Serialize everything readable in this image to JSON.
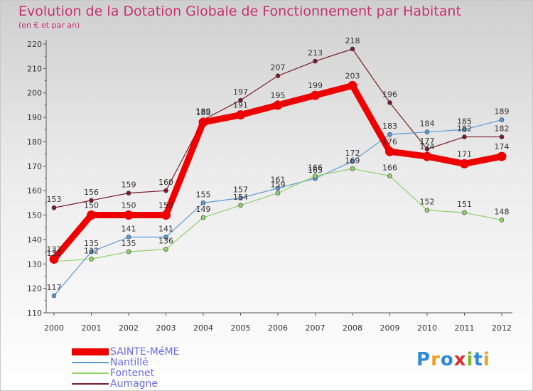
{
  "title": "Evolution de la Dotation Globale de Fonctionnement par Habitant",
  "subtitle": "(en € et par an)",
  "logo": {
    "text": "Proxiti",
    "colors": [
      "#2f8ad8",
      "#f0a020",
      "#2f8ad8",
      "#d83030",
      "#7ab828",
      "#2f8ad8",
      "#f0a020"
    ]
  },
  "chart_data": {
    "type": "line",
    "title": "Evolution de la Dotation Globale de Fonctionnement par Habitant",
    "subtitle": "(en € et par an)",
    "xlabel": "",
    "ylabel": "",
    "x": [
      "2000",
      "2001",
      "2002",
      "2003",
      "2004",
      "2005",
      "2006",
      "2007",
      "2008",
      "2009",
      "2010",
      "2011",
      "2012"
    ],
    "ylim": [
      110,
      220
    ],
    "yticks": [
      110,
      120,
      130,
      140,
      150,
      160,
      170,
      180,
      190,
      200,
      210,
      220
    ],
    "grid": false,
    "legend_position": "bottom-left",
    "series": [
      {
        "name": "SAINTE-MéME",
        "color": "#ee0000",
        "values": [
          132,
          150,
          150,
          150,
          188,
          191,
          195,
          199,
          203,
          176,
          174,
          171,
          174
        ]
      },
      {
        "name": "Nantillé",
        "color": "#5b9bd5",
        "values": [
          117,
          135,
          141,
          141,
          155,
          157,
          161,
          165,
          172,
          183,
          184,
          185,
          189
        ]
      },
      {
        "name": "Fontenet",
        "color": "#8fd16a",
        "values": [
          131,
          132,
          135,
          136,
          149,
          154,
          159,
          166,
          169,
          166,
          152,
          151,
          148
        ]
      },
      {
        "name": "Aumagne",
        "color": "#7a1c2a",
        "values": [
          153,
          156,
          159,
          160,
          189,
          197,
          207,
          213,
          218,
          196,
          177,
          182,
          182
        ]
      }
    ]
  }
}
